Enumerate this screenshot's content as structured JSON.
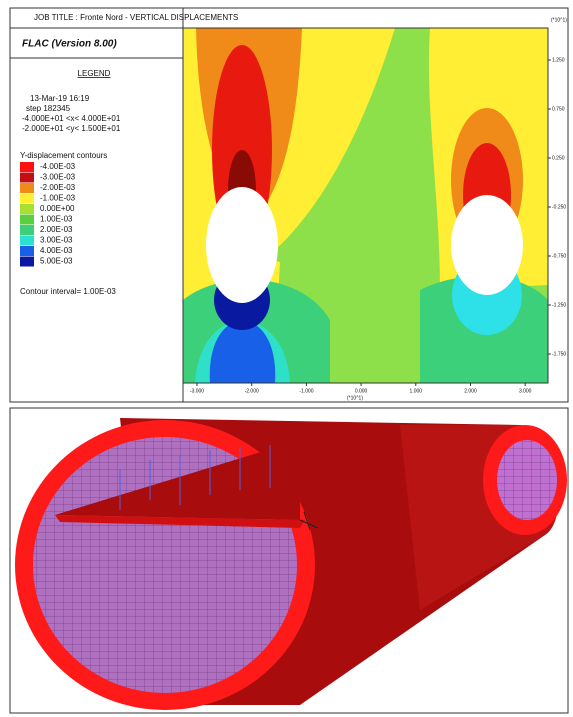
{
  "header": {
    "job_title": "JOB TITLE : Fronte Nord - VERTICAL DISPLACEMENTS",
    "program": "FLAC (Version 8.00)"
  },
  "legend": {
    "title": "LEGEND",
    "date": "13-Mar-19  16:19",
    "step": "step  182345",
    "x_range": "-4.000E+01 <x< 4.000E+01",
    "y_range": "-2.000E+01 <y< 1.500E+01",
    "contours_title": "Y-displacement contours",
    "levels": [
      "-4.00E-03",
      "-3.00E-03",
      "-2.00E-03",
      "-1.00E-03",
      "0.00E+00",
      "1.00E-03",
      "2.00E-03",
      "3.00E-03",
      "4.00E-03",
      "5.00E-03"
    ],
    "contour_interval": "Contour interval= 1.00E-03"
  },
  "plot": {
    "x_ticks": [
      "-3.000",
      "-2.000",
      "-1.000",
      "0.000",
      "1.000",
      "2.000",
      "3.000"
    ],
    "x_multiplier": "(*10^1)",
    "y_ticks": [
      "1.250",
      "0.750",
      "0.250",
      "-0.250",
      "-0.750",
      "-1.250",
      "-1.750"
    ],
    "y_multiplier": "(*10^1)"
  }
}
